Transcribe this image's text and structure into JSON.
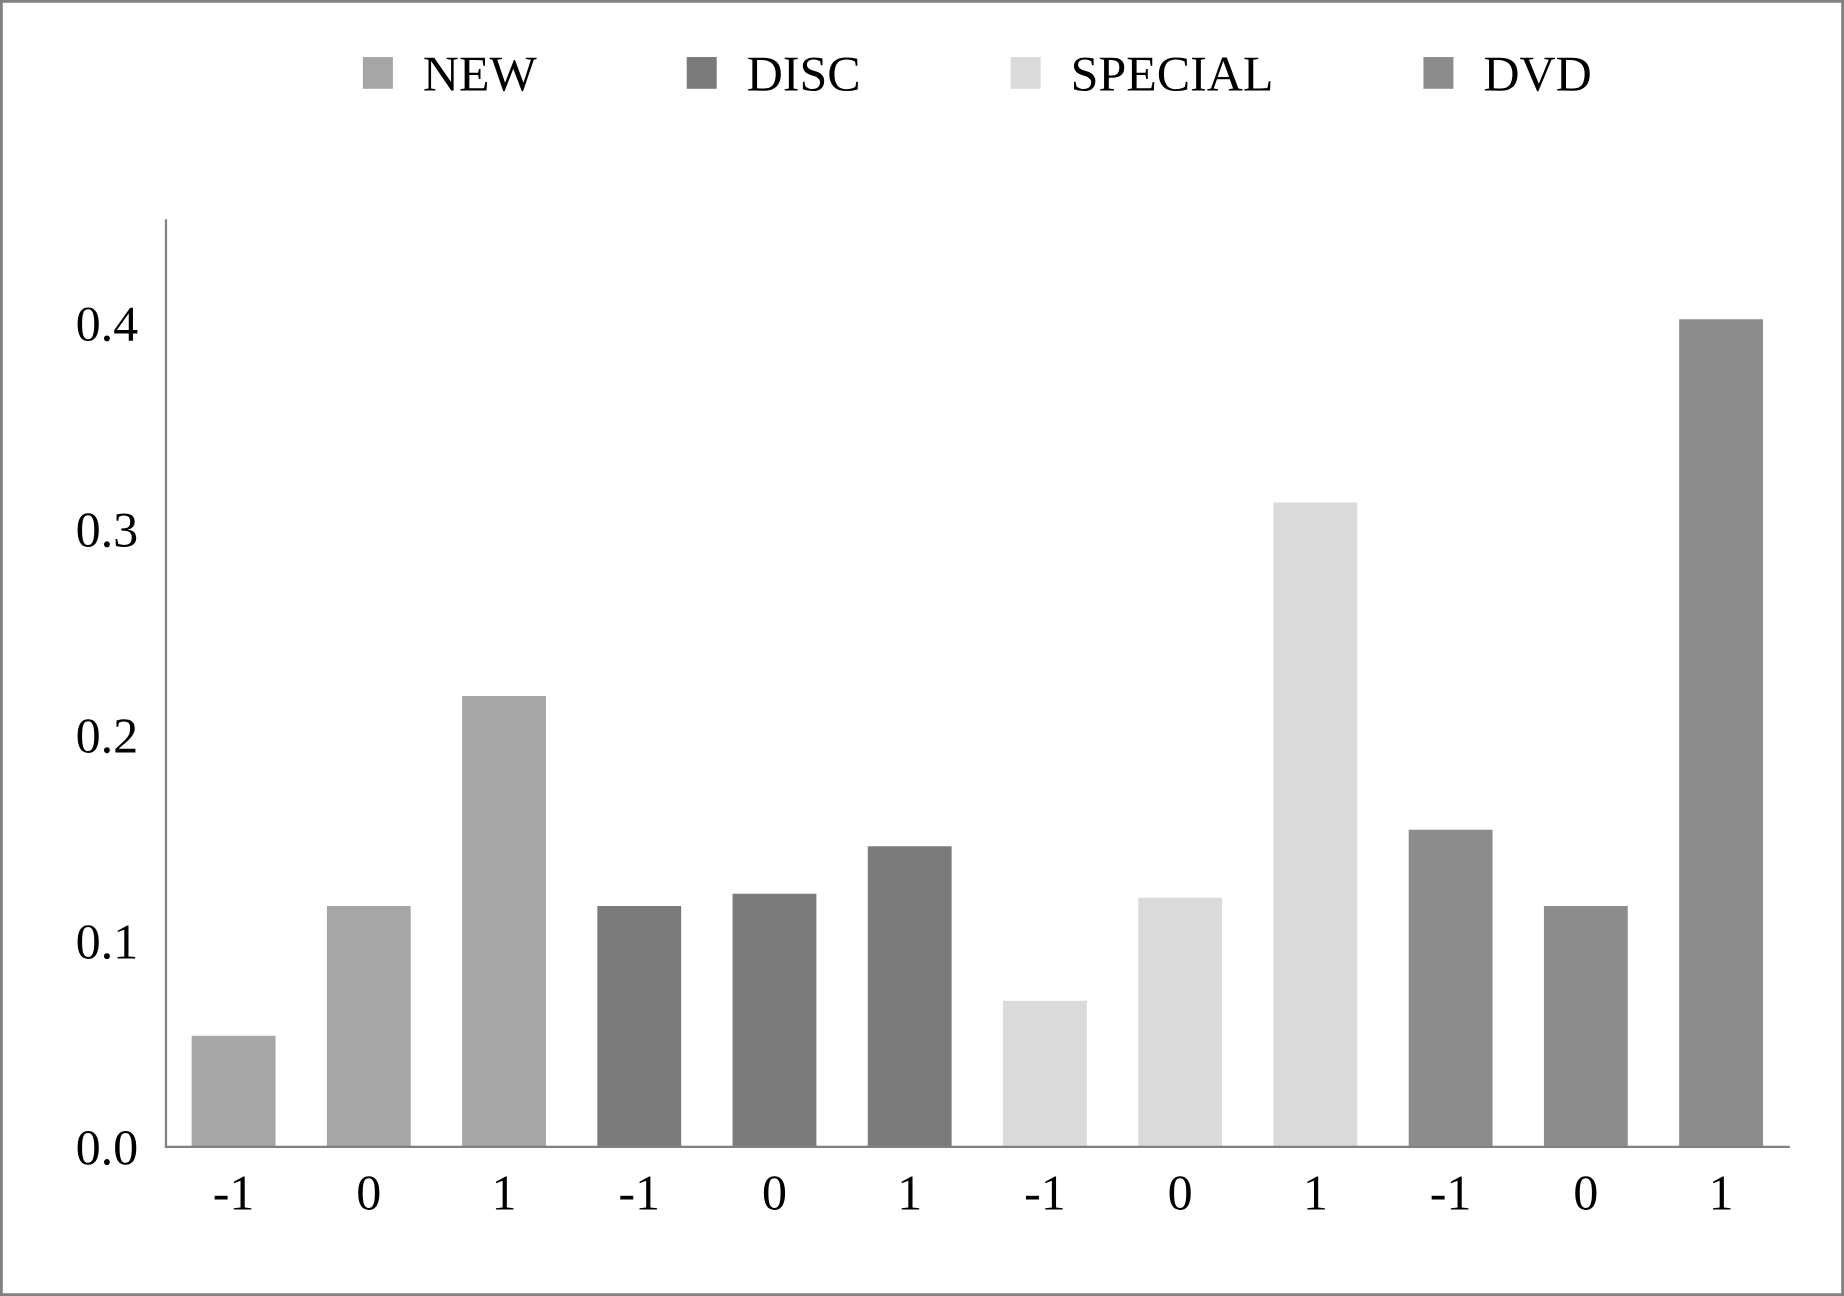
{
  "chart_data": {
    "type": "bar",
    "categories": [
      "-1",
      "0",
      "1",
      "-1",
      "0",
      "1",
      "-1",
      "0",
      "1",
      "-1",
      "0",
      "1"
    ],
    "series": [
      {
        "name": "NEW",
        "color": "#a6a6a6",
        "values": [
          0.054,
          0.117,
          0.219,
          null,
          null,
          null,
          null,
          null,
          null,
          null,
          null,
          null
        ]
      },
      {
        "name": "DISC",
        "color": "#7a7a7a",
        "values": [
          null,
          null,
          null,
          0.117,
          0.123,
          0.146,
          null,
          null,
          null,
          null,
          null,
          null
        ]
      },
      {
        "name": "SPECIAL",
        "color": "#dadada",
        "values": [
          null,
          null,
          null,
          null,
          null,
          null,
          0.071,
          0.121,
          0.313,
          null,
          null,
          null
        ]
      },
      {
        "name": "DVD",
        "color": "#8c8c8c",
        "values": [
          null,
          null,
          null,
          null,
          null,
          null,
          null,
          null,
          null,
          0.154,
          0.117,
          0.402
        ]
      }
    ],
    "ylim": [
      0,
      0.45
    ],
    "yticks": [
      {
        "value": 0,
        "label": "0.0"
      },
      0.1,
      0.2,
      0.3,
      0.4
    ],
    "grid": false,
    "legend": "top"
  }
}
